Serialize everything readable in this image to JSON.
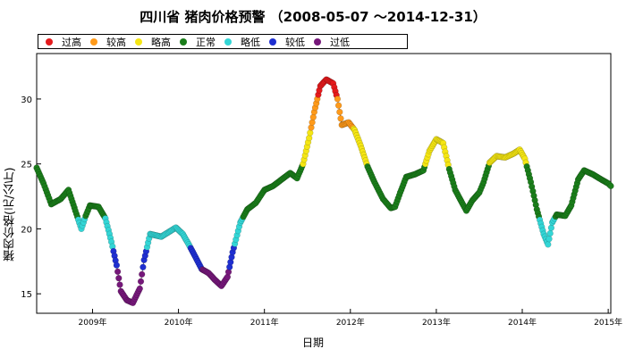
{
  "chart_data": {
    "type": "scatter",
    "title": "四川省 猪肉价格预警 （2008-05-07 ～2014-12-31）",
    "xlabel": "日期",
    "ylabel": "猪肉价格(元/公斤)",
    "xlim": [
      2008.35,
      2015.03
    ],
    "ylim": [
      13.5,
      33.5
    ],
    "y_ticks": [
      15,
      20,
      25,
      30
    ],
    "x_ticks": [
      {
        "value": 2009,
        "label": "2009年"
      },
      {
        "value": 2010,
        "label": "2010年"
      },
      {
        "value": 2011,
        "label": "2011年"
      },
      {
        "value": 2012,
        "label": "2012年"
      },
      {
        "value": 2013,
        "label": "2013年"
      },
      {
        "value": 2014,
        "label": "2014年"
      },
      {
        "value": 2015,
        "label": "2015年"
      }
    ],
    "legend_position": "top-left",
    "legend": [
      {
        "key": "guogao",
        "name": "过高",
        "color": "#e41a1c"
      },
      {
        "key": "jiaogao",
        "name": "较高",
        "color": "#ff9a1a"
      },
      {
        "key": "luegao",
        "name": "略高",
        "color": "#f5e614"
      },
      {
        "key": "zhengchang",
        "name": "正常",
        "color": "#1a7d1a"
      },
      {
        "key": "luedi",
        "name": "略低",
        "color": "#33d6d6"
      },
      {
        "key": "jiaodi",
        "name": "较低",
        "color": "#1f2fd1"
      },
      {
        "key": "guodi",
        "name": "过低",
        "color": "#76187a"
      }
    ],
    "anchors": [
      [
        2008.35,
        24.7
      ],
      [
        2008.43,
        23.5
      ],
      [
        2008.52,
        21.9
      ],
      [
        2008.63,
        22.3
      ],
      [
        2008.72,
        23.0
      ],
      [
        2008.8,
        21.4
      ],
      [
        2008.87,
        20.0
      ],
      [
        2008.92,
        21.0
      ],
      [
        2008.97,
        21.8
      ],
      [
        2009.07,
        21.7
      ],
      [
        2009.15,
        20.8
      ],
      [
        2009.22,
        19.0
      ],
      [
        2009.28,
        17.2
      ],
      [
        2009.33,
        15.2
      ],
      [
        2009.4,
        14.5
      ],
      [
        2009.47,
        14.3
      ],
      [
        2009.55,
        15.4
      ],
      [
        2009.6,
        17.6
      ],
      [
        2009.67,
        19.6
      ],
      [
        2009.8,
        19.4
      ],
      [
        2009.97,
        20.1
      ],
      [
        2010.05,
        19.6
      ],
      [
        2010.12,
        18.8
      ],
      [
        2010.2,
        17.8
      ],
      [
        2010.27,
        16.9
      ],
      [
        2010.35,
        16.6
      ],
      [
        2010.42,
        16.1
      ],
      [
        2010.5,
        15.6
      ],
      [
        2010.57,
        16.3
      ],
      [
        2010.63,
        18.2
      ],
      [
        2010.72,
        20.5
      ],
      [
        2010.8,
        21.5
      ],
      [
        2010.9,
        22.0
      ],
      [
        2011.0,
        23.0
      ],
      [
        2011.1,
        23.3
      ],
      [
        2011.2,
        23.8
      ],
      [
        2011.3,
        24.3
      ],
      [
        2011.38,
        23.9
      ],
      [
        2011.45,
        25.0
      ],
      [
        2011.52,
        27.0
      ],
      [
        2011.58,
        29.0
      ],
      [
        2011.65,
        31.0
      ],
      [
        2011.72,
        31.5
      ],
      [
        2011.8,
        31.2
      ],
      [
        2011.85,
        30.0
      ],
      [
        2011.9,
        28.0
      ],
      [
        2011.98,
        28.2
      ],
      [
        2012.05,
        27.6
      ],
      [
        2012.12,
        26.4
      ],
      [
        2012.2,
        24.8
      ],
      [
        2012.28,
        23.6
      ],
      [
        2012.38,
        22.3
      ],
      [
        2012.47,
        21.6
      ],
      [
        2012.52,
        21.7
      ],
      [
        2012.58,
        22.8
      ],
      [
        2012.65,
        24.0
      ],
      [
        2012.75,
        24.2
      ],
      [
        2012.85,
        24.5
      ],
      [
        2012.92,
        26.0
      ],
      [
        2013.0,
        26.9
      ],
      [
        2013.08,
        26.6
      ],
      [
        2013.15,
        24.6
      ],
      [
        2013.22,
        23.0
      ],
      [
        2013.3,
        22.0
      ],
      [
        2013.35,
        21.4
      ],
      [
        2013.42,
        22.2
      ],
      [
        2013.5,
        22.8
      ],
      [
        2013.55,
        23.6
      ],
      [
        2013.62,
        25.1
      ],
      [
        2013.7,
        25.6
      ],
      [
        2013.8,
        25.5
      ],
      [
        2013.9,
        25.8
      ],
      [
        2013.97,
        26.1
      ],
      [
        2014.03,
        25.4
      ],
      [
        2014.1,
        23.6
      ],
      [
        2014.17,
        21.5
      ],
      [
        2014.25,
        19.6
      ],
      [
        2014.3,
        18.8
      ],
      [
        2014.35,
        20.5
      ],
      [
        2014.4,
        21.1
      ],
      [
        2014.5,
        21.0
      ],
      [
        2014.57,
        21.8
      ],
      [
        2014.65,
        23.8
      ],
      [
        2014.72,
        24.5
      ],
      [
        2014.82,
        24.2
      ],
      [
        2014.92,
        23.8
      ],
      [
        2015.0,
        23.5
      ],
      [
        2015.03,
        23.3
      ]
    ]
  }
}
